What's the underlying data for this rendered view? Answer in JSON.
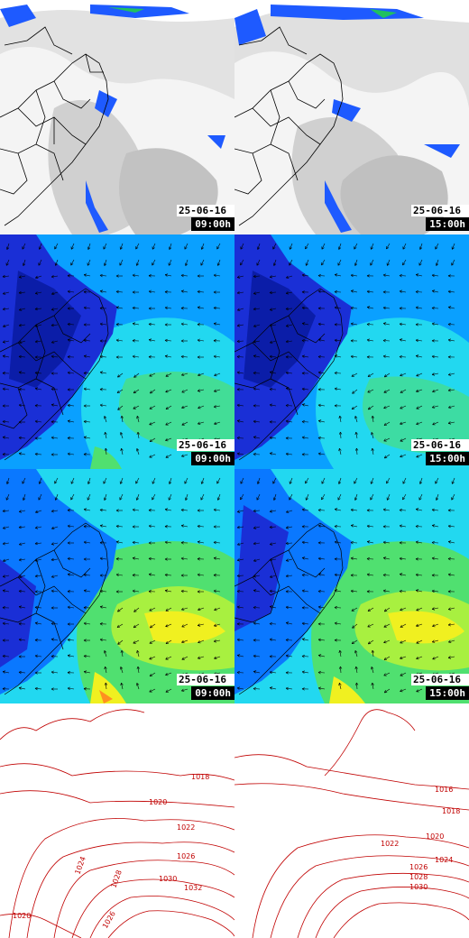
{
  "panels": [
    {
      "row": "satellite",
      "col": "left",
      "date": "25-06-16",
      "time": "09:00h"
    },
    {
      "row": "satellite",
      "col": "right",
      "date": "25-06-16",
      "time": "15:00h"
    },
    {
      "row": "wind-850",
      "col": "left",
      "date": "25-06-16",
      "time": "09:00h"
    },
    {
      "row": "wind-850",
      "col": "right",
      "date": "25-06-16",
      "time": "15:00h"
    },
    {
      "row": "wind-500",
      "col": "left",
      "date": "25-06-16",
      "time": "09:00h"
    },
    {
      "row": "wind-500",
      "col": "right",
      "date": "25-06-16",
      "time": "15:00h"
    }
  ],
  "pressure": {
    "left_labels": [
      "1018",
      "1020",
      "1022",
      "1024",
      "1026",
      "1028",
      "1030",
      "1032",
      "1020",
      "1026"
    ],
    "right_labels": [
      "1016",
      "1018",
      "1020",
      "1022",
      "1024",
      "1026",
      "1028",
      "1030"
    ]
  },
  "colors": {
    "isobar": "#c00000",
    "wind_dark": "#1a2fd6",
    "wind_mid": "#0aa0ff",
    "wind_light": "#22d8f0",
    "wind_green": "#50e070",
    "wind_yellow": "#f0f020",
    "cloud": "#c8c8c8",
    "rain": "#1e5aff"
  }
}
